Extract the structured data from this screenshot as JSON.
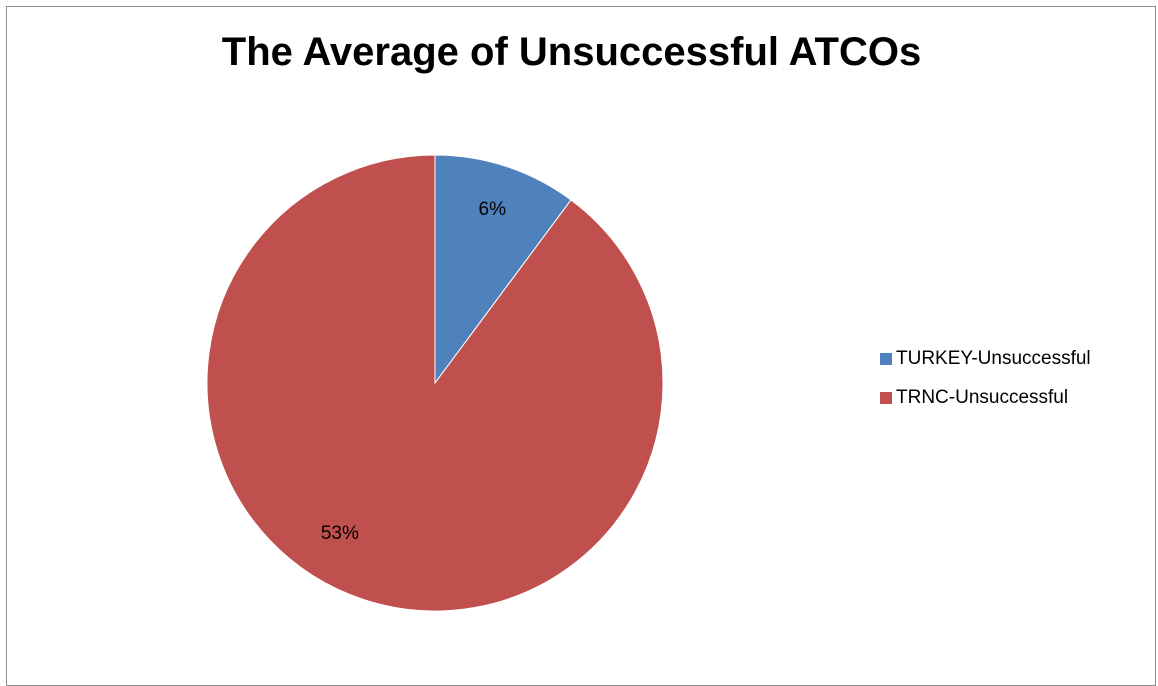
{
  "chart_data": {
    "type": "pie",
    "title": "The Average of Unsuccessful ATCOs",
    "legend_position": "right",
    "slices": [
      {
        "name": "TURKEY-Unsuccessful",
        "value": 6,
        "label": "6%",
        "color": "#4F81BD"
      },
      {
        "name": "TRNC-Unsuccessful",
        "value": 53,
        "label": "53%",
        "color": "#C0504D"
      }
    ]
  },
  "legend": {
    "items": [
      {
        "label": "TURKEY-Unsuccessful",
        "color": "#4F81BD"
      },
      {
        "label": "TRNC-Unsuccessful",
        "color": "#C0504D"
      }
    ]
  }
}
